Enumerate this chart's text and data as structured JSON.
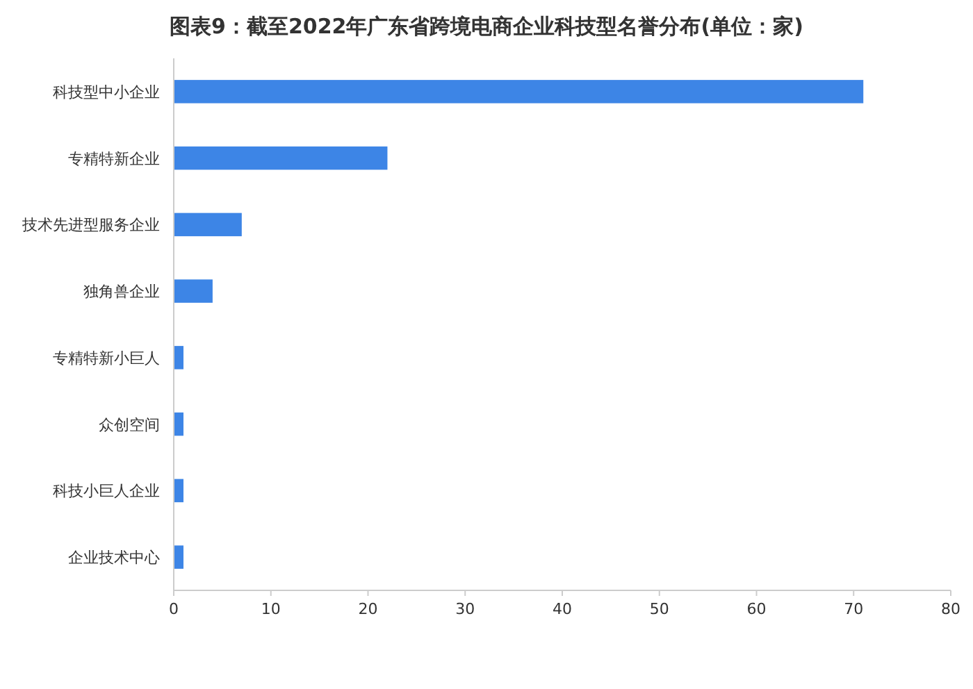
{
  "chart_data": {
    "type": "bar",
    "orientation": "horizontal",
    "title": "图表9：截至2022年广东省跨境电商企业科技型名誉分布(单位：家)",
    "categories": [
      "科技型中小企业",
      "专精特新企业",
      "技术先进型服务企业",
      "独角兽企业",
      "专精特新小巨人",
      "众创空间",
      "科技小巨人企业",
      "企业技术中心"
    ],
    "values": [
      71,
      22,
      7,
      4,
      1,
      1,
      1,
      1
    ],
    "color": "#3d85e6",
    "xlim": [
      0,
      80
    ],
    "xticks": [
      0,
      10,
      20,
      30,
      40,
      50,
      60,
      70,
      80
    ],
    "grid": false
  }
}
